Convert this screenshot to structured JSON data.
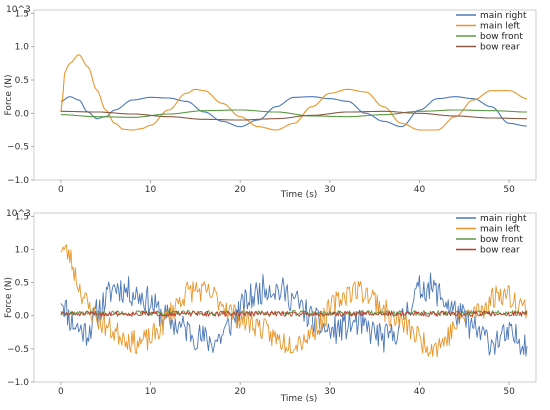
{
  "chart_data": [
    {
      "type": "line",
      "exponent_label": "10^3",
      "xlabel": "Time (s)",
      "ylabel": "Force (N)",
      "xlim": [
        -3,
        53
      ],
      "ylim": [
        -1.0,
        1.55
      ],
      "xticks": [
        0,
        10,
        20,
        30,
        40,
        50
      ],
      "yticks": [
        -1.0,
        -0.5,
        0.0,
        0.5,
        1.0,
        1.5
      ],
      "ytick_labels": [
        "−1.0",
        "−0.5",
        "0.0",
        "0.5",
        "1.0",
        "1.5"
      ],
      "legend_position": "top-right",
      "series": [
        {
          "name": "main right",
          "color": "#4c78b8",
          "x": [
            0,
            1,
            2,
            3,
            4,
            5,
            6,
            8,
            10,
            12,
            14,
            16,
            18,
            20,
            22,
            24,
            26,
            28,
            30,
            32,
            34,
            36,
            38,
            40,
            42,
            44,
            46,
            48,
            50,
            52
          ],
          "y": [
            0.18,
            0.25,
            0.2,
            0.02,
            -0.08,
            -0.05,
            0.05,
            0.2,
            0.24,
            0.23,
            0.18,
            0.02,
            -0.12,
            -0.2,
            -0.1,
            0.1,
            0.24,
            0.25,
            0.22,
            0.18,
            0.0,
            -0.12,
            -0.2,
            0.05,
            0.22,
            0.25,
            0.22,
            0.1,
            -0.15,
            -0.19
          ]
        },
        {
          "name": "main left",
          "color": "#e8962b",
          "x": [
            0,
            0.5,
            1,
            2,
            3,
            4,
            5,
            6,
            7,
            8,
            9,
            10,
            12,
            14,
            15,
            16,
            18,
            20,
            22,
            24,
            26,
            28,
            30,
            32,
            34,
            36,
            38,
            40,
            42,
            44,
            46,
            48,
            50,
            52
          ],
          "y": [
            0.02,
            0.65,
            0.75,
            0.88,
            0.7,
            0.35,
            0.05,
            -0.15,
            -0.24,
            -0.25,
            -0.23,
            -0.18,
            0.05,
            0.3,
            0.36,
            0.34,
            0.15,
            -0.05,
            -0.2,
            -0.25,
            -0.15,
            0.1,
            0.3,
            0.36,
            0.32,
            0.1,
            -0.15,
            -0.25,
            -0.25,
            -0.05,
            0.2,
            0.34,
            0.34,
            0.22
          ]
        },
        {
          "name": "bow front",
          "color": "#5b9a45",
          "x": [
            0,
            4,
            8,
            12,
            16,
            20,
            24,
            28,
            32,
            36,
            40,
            44,
            48,
            52
          ],
          "y": [
            -0.02,
            -0.05,
            -0.06,
            -0.01,
            0.04,
            0.05,
            0.02,
            -0.04,
            -0.05,
            -0.02,
            0.03,
            0.05,
            0.04,
            0.02
          ]
        },
        {
          "name": "bow rear",
          "color": "#8a5a44",
          "x": [
            0,
            4,
            8,
            12,
            16,
            20,
            24,
            28,
            32,
            36,
            40,
            44,
            48,
            52
          ],
          "y": [
            0.03,
            0.02,
            -0.01,
            -0.05,
            -0.09,
            -0.1,
            -0.08,
            -0.03,
            0.02,
            0.03,
            0.0,
            -0.04,
            -0.07,
            -0.08
          ]
        }
      ]
    },
    {
      "type": "line",
      "exponent_label": "10^3",
      "xlabel": "Time (s)",
      "ylabel": "Force (N)",
      "xlim": [
        -3,
        53
      ],
      "ylim": [
        -1.0,
        1.55
      ],
      "xticks": [
        0,
        10,
        20,
        30,
        40,
        50
      ],
      "yticks": [
        -1.0,
        -0.5,
        0.0,
        0.5,
        1.0,
        1.5
      ],
      "ytick_labels": [
        "−1.0",
        "−0.5",
        "0.0",
        "0.5",
        "1.0",
        "1.5"
      ],
      "legend_position": "top-right",
      "series": [
        {
          "name": "main right",
          "color": "#4c78b8",
          "x": [
            0,
            1,
            2,
            3,
            4,
            5,
            6,
            7,
            8,
            9,
            10,
            11,
            12,
            13,
            14,
            15,
            16,
            17,
            18,
            19,
            20,
            21,
            22,
            23,
            24,
            25,
            26,
            27,
            28,
            29,
            30,
            31,
            32,
            33,
            34,
            35,
            36,
            37,
            38,
            39,
            40,
            41,
            42,
            43,
            44,
            45,
            46,
            47,
            48,
            49,
            50,
            51,
            52
          ],
          "y": [
            0.3,
            -0.05,
            -0.2,
            -0.25,
            0.05,
            0.25,
            0.45,
            0.4,
            0.35,
            0.3,
            0.2,
            0.05,
            -0.05,
            -0.15,
            -0.2,
            -0.3,
            -0.35,
            -0.4,
            -0.3,
            -0.1,
            0.1,
            0.25,
            0.35,
            0.45,
            0.4,
            0.35,
            0.25,
            0.1,
            -0.05,
            -0.15,
            -0.25,
            -0.2,
            -0.15,
            -0.1,
            -0.2,
            -0.25,
            -0.35,
            -0.3,
            -0.1,
            0.2,
            0.4,
            0.45,
            0.35,
            0.2,
            0.05,
            -0.05,
            -0.2,
            -0.3,
            -0.4,
            -0.35,
            -0.3,
            -0.35,
            -0.4
          ],
          "noise": 0.22,
          "seed": 11
        },
        {
          "name": "main left",
          "color": "#e8962b",
          "x": [
            0,
            1,
            2,
            3,
            4,
            5,
            6,
            7,
            8,
            9,
            10,
            11,
            12,
            13,
            14,
            15,
            16,
            17,
            18,
            19,
            20,
            21,
            22,
            23,
            24,
            25,
            26,
            27,
            28,
            29,
            30,
            31,
            32,
            33,
            34,
            35,
            36,
            37,
            38,
            39,
            40,
            41,
            42,
            43,
            44,
            45,
            46,
            47,
            48,
            49,
            50,
            51,
            52
          ],
          "y": [
            1.05,
            0.9,
            0.45,
            0.15,
            -0.05,
            -0.15,
            -0.25,
            -0.3,
            -0.4,
            -0.4,
            -0.35,
            -0.2,
            0.0,
            0.2,
            0.35,
            0.4,
            0.35,
            0.3,
            0.2,
            0.05,
            -0.05,
            -0.1,
            -0.15,
            -0.25,
            -0.35,
            -0.4,
            -0.4,
            -0.35,
            -0.25,
            -0.1,
            0.1,
            0.25,
            0.35,
            0.4,
            0.35,
            0.25,
            0.1,
            -0.05,
            -0.1,
            -0.2,
            -0.35,
            -0.45,
            -0.45,
            -0.35,
            -0.15,
            0.0,
            0.05,
            0.1,
            0.25,
            0.35,
            0.3,
            0.2,
            0.1
          ],
          "noise": 0.18,
          "seed": 23
        },
        {
          "name": "bow front",
          "color": "#5b9a45",
          "x": [
            0,
            10,
            20,
            30,
            40,
            52
          ],
          "y": [
            0.04,
            0.04,
            0.04,
            0.04,
            0.04,
            0.04
          ],
          "noise": 0.04,
          "seed": 37
        },
        {
          "name": "bow rear",
          "color": "#c0392b",
          "x": [
            0,
            10,
            20,
            30,
            40,
            52
          ],
          "y": [
            0.03,
            0.03,
            0.03,
            0.03,
            0.03,
            0.03
          ],
          "noise": 0.04,
          "seed": 51
        }
      ]
    }
  ]
}
